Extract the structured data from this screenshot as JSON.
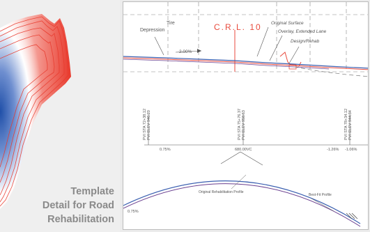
{
  "caption": {
    "line1": "Template",
    "line2": "Detail for Road",
    "line3": "Rehabilitation"
  },
  "drawing": {
    "tire_depression": "Tire",
    "tire_depression_2": "Depression",
    "crl_label": "C.R.L. 10",
    "original_surface": "Original Surface",
    "overlay_label": "Overlay, Extended Lane",
    "design_rehab": "Design/Rehab",
    "slope_label": "2.00%",
    "pvi_left_1": "PVI STA 72+38.12",
    "pvi_left_2": "PVI ELEV 946.20",
    "pvi_mid_1": "PVI STA 75+76.37",
    "pvi_mid_2": "PVI ELEV 958.63",
    "pvi_right_1": "PVI STA 78+34.12",
    "pvi_right_2": "PVI ELEV 944.34",
    "grade_left": "0.75%",
    "vc_length": "680.00VC",
    "grade_right_1": "-1.26%",
    "grade_right_2": "-1.06%",
    "best_fit": "Best-Fit Profile",
    "orig_rehab": "Original Rehabilitation Profile",
    "bottom_left_grade": "0.75%"
  },
  "colors": {
    "heat_red": "#e8392c",
    "heat_blue": "#2b5fb3",
    "caption_gray": "#8a8a8a",
    "line_red": "#e84a3c",
    "line_blue": "#3a5fb0",
    "line_purple": "#6a3f8f"
  }
}
